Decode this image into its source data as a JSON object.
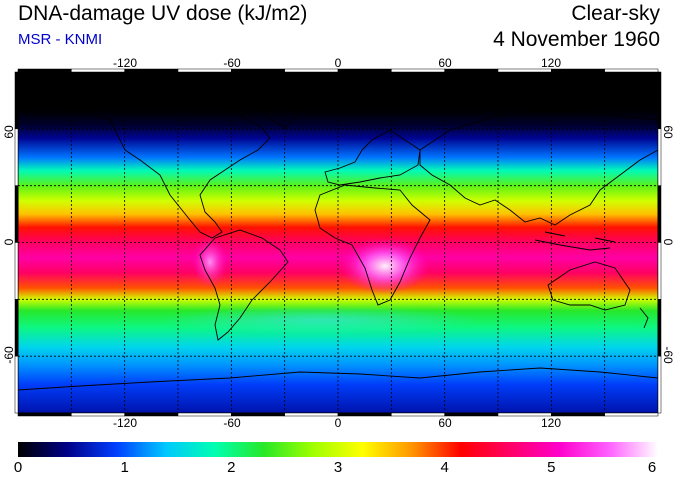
{
  "header": {
    "title": "DNA-damage UV dose (kJ/m2)",
    "source": "MSR - KNMI",
    "mode": "Clear-sky",
    "date": "4 November 1960"
  },
  "map": {
    "lon_ticks": [
      "-120",
      "-60",
      "0",
      "60",
      "120"
    ],
    "lat_ticks": [
      "60",
      "0",
      "-60"
    ],
    "lon_range": [
      -180,
      180
    ],
    "lat_range": [
      -90,
      90
    ],
    "grid_lon": [
      -150,
      -120,
      -90,
      -60,
      -30,
      0,
      30,
      60,
      90,
      120,
      150
    ],
    "grid_lat": [
      -60,
      -30,
      0,
      30,
      60
    ]
  },
  "colorbar": {
    "labels": [
      "0",
      "1",
      "2",
      "3",
      "4",
      "5",
      "6"
    ],
    "min": 0,
    "max": 6,
    "stops": [
      "#000000",
      "#000088",
      "#0040ff",
      "#00c8ff",
      "#00ffb0",
      "#28e828",
      "#a0ff00",
      "#ffff00",
      "#ff9600",
      "#ff0000",
      "#ff0066",
      "#ff00cc",
      "#ff60ff",
      "#ffffff"
    ]
  },
  "dose_profile": [
    {
      "lat": 90,
      "value": 0.0
    },
    {
      "lat": 70,
      "value": 0.0
    },
    {
      "lat": 62,
      "value": 0.15
    },
    {
      "lat": 55,
      "value": 0.5
    },
    {
      "lat": 45,
      "value": 1.1
    },
    {
      "lat": 38,
      "value": 1.8
    },
    {
      "lat": 30,
      "value": 2.5
    },
    {
      "lat": 22,
      "value": 3.0
    },
    {
      "lat": 15,
      "value": 3.5
    },
    {
      "lat": 8,
      "value": 4.1
    },
    {
      "lat": 0,
      "value": 4.6
    },
    {
      "lat": -8,
      "value": 4.9
    },
    {
      "lat": -16,
      "value": 4.6
    },
    {
      "lat": -24,
      "value": 3.9
    },
    {
      "lat": -30,
      "value": 3.0
    },
    {
      "lat": -36,
      "value": 2.3
    },
    {
      "lat": -45,
      "value": 2.0
    },
    {
      "lat": -55,
      "value": 1.5
    },
    {
      "lat": -65,
      "value": 1.2
    },
    {
      "lat": -75,
      "value": 0.9
    },
    {
      "lat": -90,
      "value": 0.6
    }
  ],
  "colors": {
    "background": "#ffffff",
    "title": "#000000",
    "source": "#0000cc",
    "grid": "#000000",
    "coast": "#000000"
  }
}
